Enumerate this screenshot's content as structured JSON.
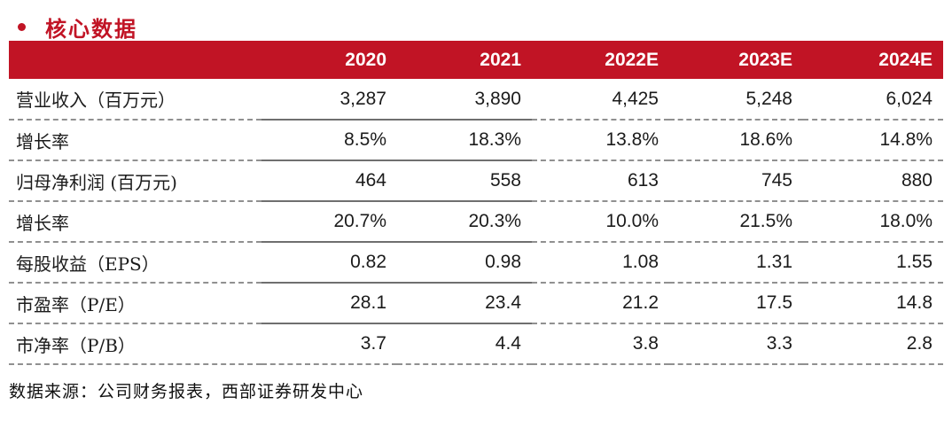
{
  "title": {
    "text": "核心数据"
  },
  "colors": {
    "accent_red": "#C11425",
    "header_text": "#FFFFFF",
    "body_text": "#1B1B1B",
    "dashed_border": "#909090",
    "solid_border": "#6F6F6F"
  },
  "table": {
    "columns": [
      "2020",
      "2021",
      "2022E",
      "2023E",
      "2024E"
    ],
    "rows": [
      {
        "label": "营业收入（百万元）",
        "values": [
          "3,287",
          "3,890",
          "4,425",
          "5,248",
          "6,024"
        ]
      },
      {
        "label": "增长率",
        "values": [
          "8.5%",
          "18.3%",
          "13.8%",
          "18.6%",
          "14.8%"
        ]
      },
      {
        "label": "归母净利润 (百万元)",
        "values": [
          "464",
          "558",
          "613",
          "745",
          "880"
        ]
      },
      {
        "label": "增长率",
        "values": [
          "20.7%",
          "20.3%",
          "10.0%",
          "21.5%",
          "18.0%"
        ]
      },
      {
        "label": "每股收益（EPS）",
        "values": [
          "0.82",
          "0.98",
          "1.08",
          "1.31",
          "1.55"
        ]
      },
      {
        "label": "市盈率（P/E）",
        "values": [
          "28.1",
          "23.4",
          "21.2",
          "17.5",
          "14.8"
        ]
      },
      {
        "label": "市净率（P/B）",
        "values": [
          "3.7",
          "4.4",
          "3.8",
          "3.3",
          "2.8"
        ]
      }
    ]
  },
  "footer": {
    "source_note": "数据来源：公司财务报表，西部证券研发中心"
  }
}
